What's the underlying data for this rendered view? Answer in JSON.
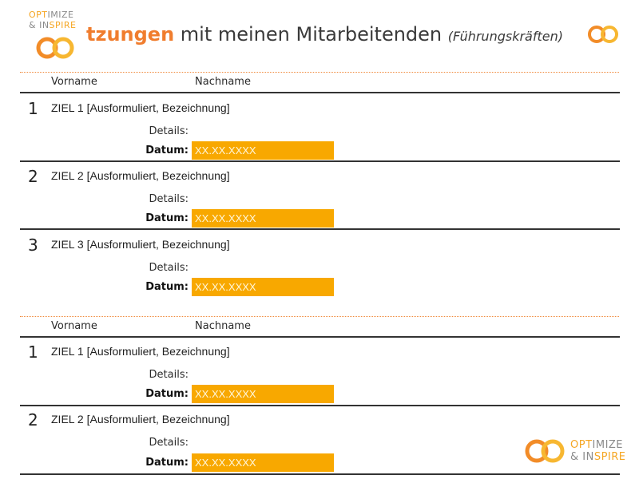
{
  "brand": {
    "line1_a": "OPT",
    "line1_b": "IMIZE",
    "line2_a": "& IN",
    "line2_b": "SPIRE"
  },
  "title": {
    "accent": "tzungen",
    "main": " mit meinen Mitarbeitenden ",
    "sub": "(Führungskräften)"
  },
  "colors": {
    "accent": "#f07d2e",
    "date_fill": "#f8a800",
    "ring_orange": "#f28c28",
    "ring_yellow": "#f7b731"
  },
  "icons": [
    "infinity-rings-logo"
  ],
  "blocks": [
    {
      "vorname": "Vorname",
      "nachname": "Nachname",
      "goals": [
        {
          "num": "1",
          "ziel": "ZIEL 1 [Ausformuliert, Bezeichnung]",
          "details": "Details:",
          "datum_label": "Datum:",
          "datum": "XX.XX.XXXX"
        },
        {
          "num": "2",
          "ziel": "ZIEL 2 [Ausformuliert, Bezeichnung]",
          "details": "Details:",
          "datum_label": "Datum:",
          "datum": "XX.XX.XXXX"
        },
        {
          "num": "3",
          "ziel": "ZIEL 3 [Ausformuliert, Bezeichnung]",
          "details": "Details:",
          "datum_label": "Datum:",
          "datum": "XX.XX.XXXX"
        }
      ]
    },
    {
      "vorname": "Vorname",
      "nachname": "Nachname",
      "goals": [
        {
          "num": "1",
          "ziel": "ZIEL 1 [Ausformuliert, Bezeichnung]",
          "details": "Details:",
          "datum_label": "Datum:",
          "datum": "XX.XX.XXXX"
        },
        {
          "num": "2",
          "ziel": "ZIEL 2 [Ausformuliert, Bezeichnung]",
          "details": "Details:",
          "datum_label": "Datum:",
          "datum": "XX.XX.XXXX"
        }
      ]
    }
  ]
}
